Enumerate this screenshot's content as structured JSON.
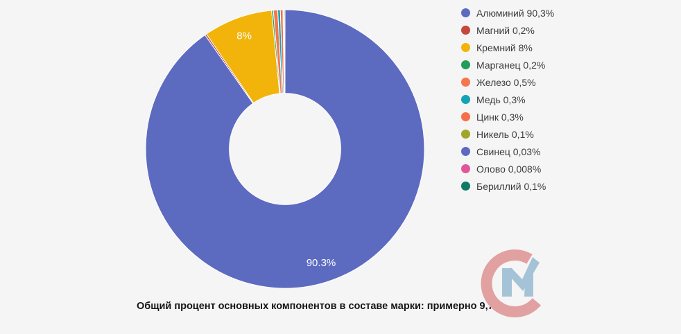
{
  "page": {
    "background": "#f5f5f5"
  },
  "chart_data": {
    "type": "pie",
    "donut_hole_ratio": 0.4,
    "start_angle_deg": 0,
    "rotation": "clockwise",
    "grid": false,
    "legend_position": "right",
    "slices": [
      {
        "name": "Алюминий",
        "value": 90.3,
        "color": "#5C6BC0",
        "legend_label": "Алюминий 90,3%",
        "chart_label": "90.3%"
      },
      {
        "name": "Магний",
        "value": 0.2,
        "color": "#C5473D",
        "legend_label": "Магний 0,2%",
        "chart_label": ""
      },
      {
        "name": "Кремний",
        "value": 8,
        "color": "#F2B40A",
        "legend_label": "Кремний 8%",
        "chart_label": "8%"
      },
      {
        "name": "Марганец",
        "value": 0.2,
        "color": "#219E58",
        "legend_label": "Марганец 0,2%",
        "chart_label": ""
      },
      {
        "name": "Железо",
        "value": 0.5,
        "color": "#F5764E",
        "legend_label": "Железо 0,5%",
        "chart_label": ""
      },
      {
        "name": "Медь",
        "value": 0.3,
        "color": "#14A3B4",
        "legend_label": "Медь 0,3%",
        "chart_label": ""
      },
      {
        "name": "Цинк",
        "value": 0.3,
        "color": "#F66F4A",
        "legend_label": "Цинк 0,3%",
        "chart_label": ""
      },
      {
        "name": "Никель",
        "value": 0.1,
        "color": "#A1A52B",
        "legend_label": "Никель 0,1%",
        "chart_label": ""
      },
      {
        "name": "Свинец",
        "value": 0.03,
        "color": "#5C6BC0",
        "legend_label": "Свинец 0,03%",
        "chart_label": ""
      },
      {
        "name": "Олово",
        "value": 0.008,
        "color": "#E0569B",
        "legend_label": "Олово 0,008%",
        "chart_label": ""
      },
      {
        "name": "Бериллий",
        "value": 0.1,
        "color": "#0F7B67",
        "legend_label": "Бериллий 0,1%",
        "chart_label": ""
      }
    ],
    "caption": "Общий процент основных компонентов в составе марки: примерно 9,7%"
  },
  "watermark": {
    "letters": "СМ",
    "c_color": "#E2A1A1",
    "m_color": "#A5C3D6"
  }
}
